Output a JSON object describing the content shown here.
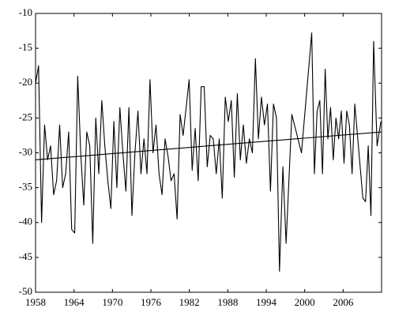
{
  "chart_data": {
    "type": "line",
    "color": "#000000",
    "x": [
      1958,
      1958.47,
      1958.94,
      1959.41,
      1959.88,
      1960.35,
      1960.82,
      1961.29,
      1961.76,
      1962.23,
      1962.7,
      1963.17,
      1963.64,
      1964.11,
      1964.58,
      1965.05,
      1965.52,
      1965.99,
      1966.46,
      1966.93,
      1967.4,
      1967.87,
      1968.34,
      1968.81,
      1969.28,
      1969.75,
      1970.22,
      1970.69,
      1971.16,
      1971.63,
      1972.1,
      1972.57,
      1973.04,
      1973.51,
      1973.98,
      1974.45,
      1974.92,
      1975.39,
      1975.86,
      1976.33,
      1976.8,
      1977.27,
      1977.74,
      1978.21,
      1978.68,
      1979.15,
      1979.62,
      1980.09,
      1980.56,
      1981.03,
      1981.5,
      1981.97,
      1982.44,
      1982.91,
      1983.38,
      1983.85,
      1984.32,
      1984.79,
      1985.26,
      1985.73,
      1986.2,
      1986.67,
      1987.14,
      1987.61,
      1988.08,
      1988.55,
      1989.02,
      1989.49,
      1989.96,
      1990.43,
      1990.9,
      1991.37,
      1991.84,
      1992.31,
      1992.78,
      1993.25,
      1993.72,
      1994.19,
      1994.66,
      1995.13,
      1995.6,
      1996.07,
      1996.6,
      1997.1,
      1998.0,
      1999.5,
      2001.1,
      2001.52,
      2001.94,
      2002.36,
      2002.78,
      2003.2,
      2003.62,
      2004.04,
      2004.46,
      2004.88,
      2005.3,
      2005.72,
      2006.14,
      2006.56,
      2006.98,
      2007.4,
      2007.82,
      2008.24,
      2008.66,
      2009.08,
      2009.5,
      2009.92,
      2010.34,
      2010.76,
      2011.3,
      2011.9
    ],
    "values": [
      -20,
      -17.5,
      -40,
      -26,
      -31,
      -29,
      -36,
      -34,
      -26,
      -35,
      -33,
      -27,
      -41,
      -41.5,
      -19,
      -30,
      -37.5,
      -27,
      -29,
      -43,
      -25,
      -33,
      -22.5,
      -29,
      -34,
      -38,
      -25.5,
      -35,
      -23.5,
      -30,
      -35.5,
      -23.5,
      -39,
      -30,
      -24,
      -33,
      -28,
      -33,
      -19.5,
      -30,
      -26,
      -33,
      -36,
      -28,
      -30.5,
      -34,
      -33,
      -39.5,
      -24.5,
      -27.5,
      -23.5,
      -19.5,
      -32.5,
      -26.5,
      -34,
      -20.5,
      -20.5,
      -32,
      -27.5,
      -28,
      -33,
      -28,
      -36.5,
      -22,
      -25.5,
      -22.5,
      -33.5,
      -21.5,
      -31,
      -26,
      -31.5,
      -28,
      -30,
      -16.5,
      -28,
      -22,
      -26,
      -23,
      -35.5,
      -23,
      -25,
      -47,
      -32,
      -43,
      -24.5,
      -30,
      -12.8,
      -33,
      -24,
      -22.5,
      -33,
      -18,
      -28,
      -23.5,
      -31,
      -25,
      -28,
      -24,
      -31.5,
      -24,
      -26,
      -33,
      -23,
      -27.5,
      -32,
      -36.5,
      -37,
      -29,
      -39,
      -14,
      -29,
      -25.5
    ],
    "trend": {
      "x": [
        1958,
        2012
      ],
      "values": [
        -31,
        -27
      ]
    },
    "xlim": [
      1958,
      2012
    ],
    "xticks": [
      1958,
      1964,
      1970,
      1976,
      1982,
      1988,
      1994,
      2000,
      2006
    ],
    "ylim": [
      -50,
      -10
    ],
    "yticks": [
      -50,
      -45,
      -40,
      -35,
      -30,
      -25,
      -20,
      -15,
      -10
    ]
  }
}
